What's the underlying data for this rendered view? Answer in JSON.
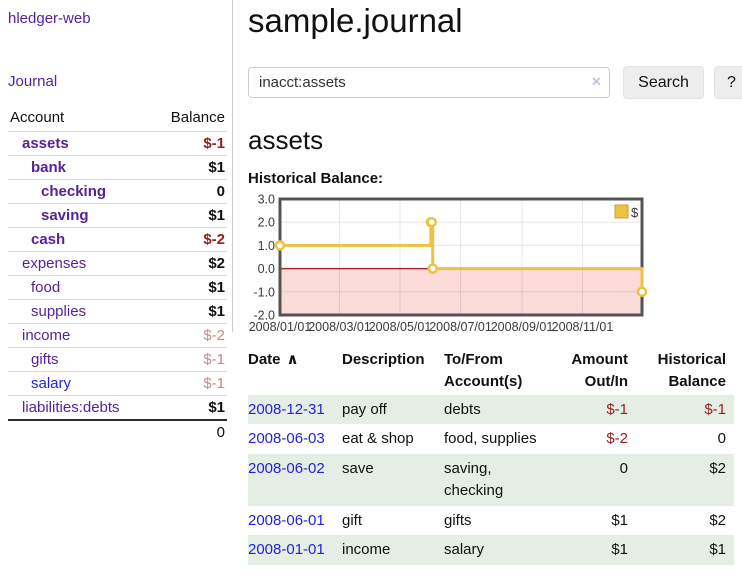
{
  "sidebar": {
    "app_title": "hledger-web",
    "nav": [
      {
        "label": "Journal"
      }
    ],
    "accounts_table": {
      "headers": [
        "Account",
        "Balance"
      ],
      "rows": [
        {
          "name": "assets",
          "balance": "$-1",
          "level": 1,
          "bold": true,
          "balance_bold": true,
          "balance_tone": "negative",
          "link": "visited"
        },
        {
          "name": "bank",
          "balance": "$1",
          "level": 2,
          "bold": true,
          "balance_bold": true,
          "balance_tone": "normal",
          "link": "visited"
        },
        {
          "name": "checking",
          "balance": "0",
          "level": 3,
          "bold": true,
          "balance_bold": true,
          "balance_tone": "normal",
          "link": "visited"
        },
        {
          "name": "saving",
          "balance": "$1",
          "level": 3,
          "bold": true,
          "balance_bold": true,
          "balance_tone": "normal",
          "link": "visited"
        },
        {
          "name": "cash",
          "balance": "$-2",
          "level": 2,
          "bold": true,
          "balance_bold": true,
          "balance_tone": "negative",
          "link": "visited"
        },
        {
          "name": "expenses",
          "balance": "$2",
          "level": 1,
          "bold": false,
          "balance_bold": true,
          "balance_tone": "normal",
          "link": "visited"
        },
        {
          "name": "food",
          "balance": "$1",
          "level": 2,
          "bold": false,
          "balance_bold": true,
          "balance_tone": "normal",
          "link": "visited"
        },
        {
          "name": "supplies",
          "balance": "$1",
          "level": 2,
          "bold": false,
          "balance_bold": true,
          "balance_tone": "normal",
          "link": "visited"
        },
        {
          "name": "income",
          "balance": "$-2",
          "level": 1,
          "bold": false,
          "balance_bold": false,
          "balance_tone": "negative-muted",
          "link": "visited"
        },
        {
          "name": "gifts",
          "balance": "$-1",
          "level": 2,
          "bold": false,
          "balance_bold": false,
          "balance_tone": "negative-muted",
          "link": "visited"
        },
        {
          "name": "salary",
          "balance": "$-1",
          "level": 2,
          "bold": false,
          "balance_bold": false,
          "balance_tone": "negative-muted",
          "link": "unvisited"
        },
        {
          "name": "liabilities:debts",
          "balance": "$1",
          "level": 1,
          "bold": false,
          "balance_bold": true,
          "balance_tone": "normal",
          "link": "visited"
        }
      ],
      "total": "0"
    }
  },
  "main": {
    "title": "sample.journal",
    "search": {
      "value": "inacct:assets",
      "clear_icon": "×",
      "button_label": "Search",
      "help_label": "?"
    },
    "account_heading": "assets",
    "chart_label": "Historical Balance:"
  },
  "chart_data": {
    "type": "line",
    "step": true,
    "title": "Historical Balance",
    "x_ticks": [
      "2008/01/01",
      "2008/03/01",
      "2008/05/01",
      "2008/07/01",
      "2008/09/01",
      "2008/11/01"
    ],
    "xlim": [
      "2008/01/01",
      "2008/12/31"
    ],
    "y_ticks": [
      3.0,
      2.0,
      1.0,
      0.0,
      -1.0,
      -2.0
    ],
    "ylim": [
      -2,
      3
    ],
    "grid": true,
    "series": [
      {
        "name": "$",
        "color": "#edc240",
        "marker_border": "#c9a12e",
        "points": [
          [
            "2008/01/01",
            1
          ],
          [
            "2008/06/01",
            2
          ],
          [
            "2008/06/02",
            2
          ],
          [
            "2008/06/03",
            0
          ],
          [
            "2008/12/31",
            -1
          ]
        ]
      }
    ],
    "legend": {
      "label": "$",
      "position": "top-right"
    },
    "negative_region_color": "#fbdada",
    "zero_line_color": "#a22c2c",
    "plot_border_color": "#545454"
  },
  "register": {
    "columns": [
      {
        "label": "Date",
        "sort": "∧",
        "align": "left"
      },
      {
        "label": "Description",
        "align": "left"
      },
      {
        "label": "To/From Account(s)",
        "align": "left"
      },
      {
        "label": "Amount Out/In",
        "align": "right"
      },
      {
        "label": "Historical Balance",
        "align": "right"
      }
    ],
    "rows": [
      {
        "date": "2008-12-31",
        "description": "pay off",
        "accounts": "debts",
        "amount": "$-1",
        "balance": "$-1"
      },
      {
        "date": "2008-06-03",
        "description": "eat & shop",
        "accounts": "food, supplies",
        "amount": "$-2",
        "balance": "0"
      },
      {
        "date": "2008-06-02",
        "description": "save",
        "accounts": "saving, checking",
        "amount": "0",
        "balance": "$2"
      },
      {
        "date": "2008-06-01",
        "description": "gift",
        "accounts": "gifts",
        "amount": "$1",
        "balance": "$2"
      },
      {
        "date": "2008-01-01",
        "description": "income",
        "accounts": "salary",
        "amount": "$1",
        "balance": "$1"
      }
    ]
  },
  "colors": {
    "link_visited_purple": "#54239c",
    "link_unvisited_blue": "#2222dd",
    "negative_red": "#9c1c1c",
    "negative_muted_red": "#c48b8b",
    "row_stripe_green": "#e4eee4",
    "series_gold": "#edc240",
    "negative_region_pink": "#fbdada",
    "zero_line_red": "#a22c2c",
    "plot_border_gray": "#545454"
  }
}
